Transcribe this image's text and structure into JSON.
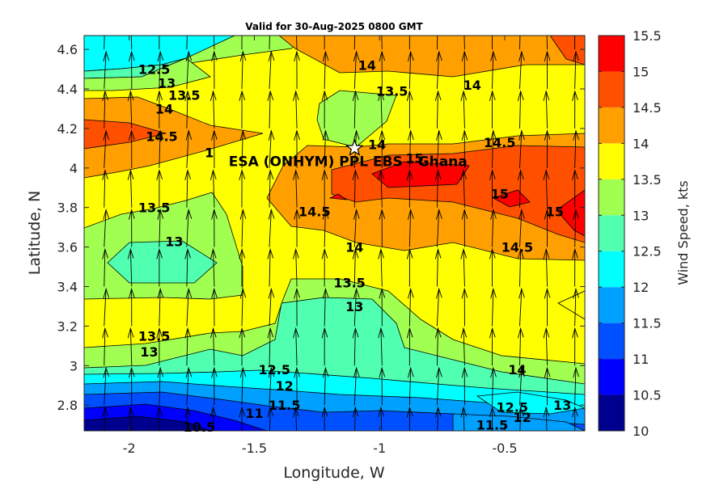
{
  "chart_data": {
    "type": "contour",
    "title": "Valid for 30-Aug-2025 0800 GMT",
    "xlabel": "Longitude, W",
    "ylabel": "Latitude, N",
    "xlim": [
      -2.18,
      -0.18
    ],
    "ylim": [
      2.67,
      4.67
    ],
    "x_ticks": [
      -2,
      -1.5,
      -1,
      -0.5
    ],
    "x_tick_labels": [
      "-2",
      "-1.5",
      "-1",
      "-0.5"
    ],
    "y_ticks": [
      2.8,
      3,
      3.2,
      3.4,
      3.6,
      3.8,
      4,
      4.2,
      4.4,
      4.6
    ],
    "y_tick_labels": [
      "2.8",
      "3",
      "3.2",
      "3.4",
      "3.6",
      "3.8",
      "4",
      "4.2",
      "4.4",
      "4.6"
    ],
    "colorbar": {
      "label": "Wind Speed, kts",
      "levels": [
        10,
        10.5,
        11,
        11.5,
        12,
        12.5,
        13,
        13.5,
        14,
        14.5,
        15,
        15.5
      ],
      "tick_labels": [
        "10",
        "10.5",
        "11",
        "11.5",
        "12",
        "12.5",
        "13",
        "13.5",
        "14",
        "14.5",
        "15",
        "15.5"
      ],
      "colors": [
        "#00008f",
        "#0000ff",
        "#0050ff",
        "#00a0ff",
        "#00ffff",
        "#50ffb0",
        "#a0ff50",
        "#ffff00",
        "#ffa000",
        "#ff5000",
        "#ff0000"
      ]
    },
    "grid": false,
    "wind_direction": "from south (arrows pointing north)",
    "site": {
      "name": "ESA (ONHYM) PPL EBS - Ghana",
      "lon": -1.1,
      "lat": 4.1,
      "marker": "star"
    },
    "contour_labels": [
      {
        "text": "12.5",
        "lon": -1.9,
        "lat": 4.5
      },
      {
        "text": "13",
        "lon": -1.85,
        "lat": 4.43
      },
      {
        "text": "13.5",
        "lon": -1.78,
        "lat": 4.37
      },
      {
        "text": "14",
        "lon": -1.86,
        "lat": 4.3
      },
      {
        "text": "14.5",
        "lon": -1.87,
        "lat": 4.16
      },
      {
        "text": "14",
        "lon": -1.05,
        "lat": 4.52
      },
      {
        "text": "13.5",
        "lon": -0.95,
        "lat": 4.39
      },
      {
        "text": "14",
        "lon": -0.63,
        "lat": 4.42
      },
      {
        "text": "14",
        "lon": -1.01,
        "lat": 4.12
      },
      {
        "text": "14.5",
        "lon": -0.52,
        "lat": 4.13
      },
      {
        "text": "15",
        "lon": -0.86,
        "lat": 4.05
      },
      {
        "text": "1",
        "lon": -1.68,
        "lat": 4.08
      },
      {
        "text": "13.5",
        "lon": -1.9,
        "lat": 3.8
      },
      {
        "text": "14.5",
        "lon": -1.26,
        "lat": 3.78
      },
      {
        "text": "15",
        "lon": -0.52,
        "lat": 3.87
      },
      {
        "text": "15",
        "lon": -0.3,
        "lat": 3.78
      },
      {
        "text": "13",
        "lon": -1.82,
        "lat": 3.63
      },
      {
        "text": "14",
        "lon": -1.1,
        "lat": 3.6
      },
      {
        "text": "14.5",
        "lon": -0.45,
        "lat": 3.6
      },
      {
        "text": "13.5",
        "lon": -1.12,
        "lat": 3.42
      },
      {
        "text": "13",
        "lon": -1.1,
        "lat": 3.3
      },
      {
        "text": "13.5",
        "lon": -1.9,
        "lat": 3.15
      },
      {
        "text": "13",
        "lon": -1.92,
        "lat": 3.07
      },
      {
        "text": "14",
        "lon": -0.45,
        "lat": 2.98
      },
      {
        "text": "12.5",
        "lon": -1.42,
        "lat": 2.98
      },
      {
        "text": "12",
        "lon": -1.38,
        "lat": 2.9
      },
      {
        "text": "11.5",
        "lon": -1.38,
        "lat": 2.8
      },
      {
        "text": "11",
        "lon": -1.5,
        "lat": 2.76
      },
      {
        "text": "10.5",
        "lon": -1.72,
        "lat": 2.69
      },
      {
        "text": "12.5",
        "lon": -0.47,
        "lat": 2.79
      },
      {
        "text": "13",
        "lon": -0.27,
        "lat": 2.8
      },
      {
        "text": "12",
        "lon": -0.43,
        "lat": 2.74
      },
      {
        "text": "11.5",
        "lon": -0.55,
        "lat": 2.7
      }
    ]
  }
}
